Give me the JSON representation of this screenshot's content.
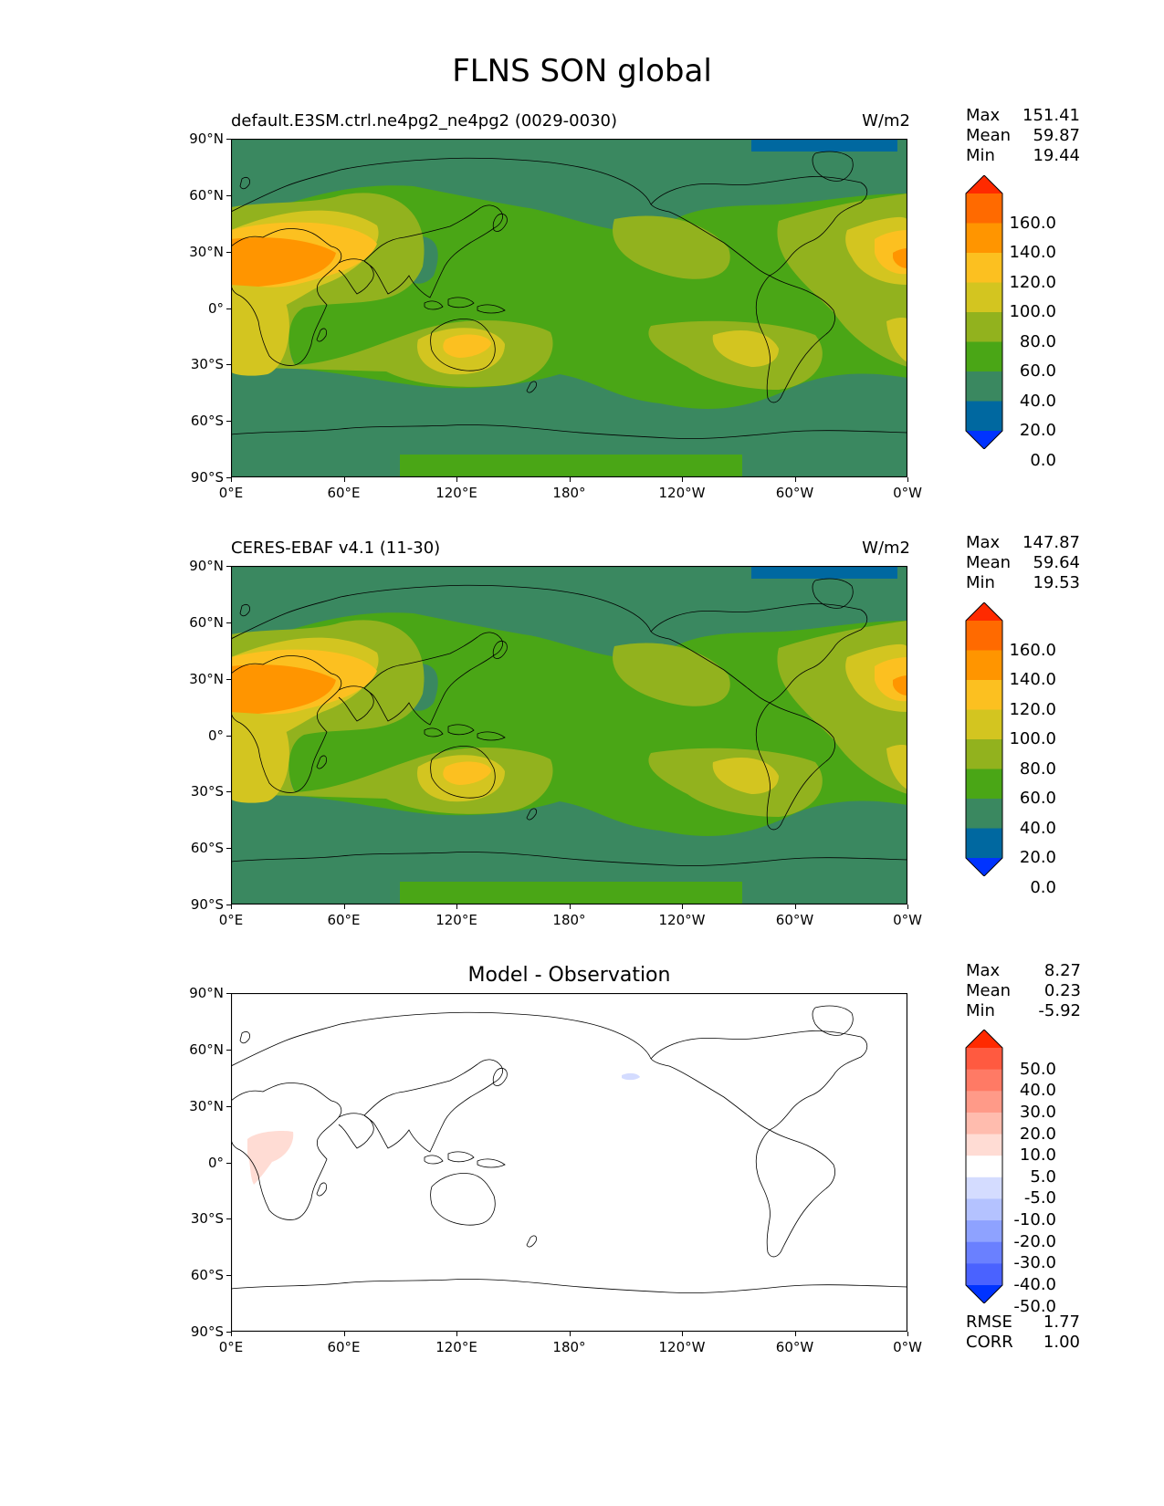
{
  "figure_title": "FLNS SON global",
  "map_x_ticks": [
    "0°E",
    "60°E",
    "120°E",
    "180°",
    "120°W",
    "60°W",
    "0°W"
  ],
  "map_y_ticks": [
    "90°N",
    "60°N",
    "30°N",
    "0°",
    "30°S",
    "60°S",
    "90°S"
  ],
  "panels": [
    {
      "title": "default.E3SM.ctrl.ne4pg2_ne4pg2 (0029-0030)",
      "units": "W/m2",
      "stats": {
        "max_label": "Max",
        "max": "151.41",
        "mean_label": "Mean",
        "mean": "59.87",
        "min_label": "Min",
        "min": "19.44"
      },
      "colorbar": {
        "labels": [
          "160.0",
          "140.0",
          "120.0",
          "100.0",
          "80.0",
          "60.0",
          "40.0",
          "20.0",
          "0.0"
        ],
        "colors": [
          "#ff2a00",
          "#ff6a00",
          "#ff9500",
          "#fcc020",
          "#d3c520",
          "#92b21e",
          "#4aa616",
          "#3a8860",
          "#0068a0",
          "#0033ff"
        ]
      }
    },
    {
      "title": "CERES-EBAF v4.1 (11-30)",
      "units": "W/m2",
      "stats": {
        "max_label": "Max",
        "max": "147.87",
        "mean_label": "Mean",
        "mean": "59.64",
        "min_label": "Min",
        "min": "19.53"
      },
      "colorbar": {
        "labels": [
          "160.0",
          "140.0",
          "120.0",
          "100.0",
          "80.0",
          "60.0",
          "40.0",
          "20.0",
          "0.0"
        ],
        "colors": [
          "#ff2a00",
          "#ff6a00",
          "#ff9500",
          "#fcc020",
          "#d3c520",
          "#92b21e",
          "#4aa616",
          "#3a8860",
          "#0068a0",
          "#0033ff"
        ]
      }
    },
    {
      "title": "Model - Observation",
      "stats": {
        "max_label": "Max",
        "max": "8.27",
        "mean_label": "Mean",
        "mean": "0.23",
        "min_label": "Min",
        "min": "-5.92"
      },
      "colorbar": {
        "labels": [
          "50.0",
          "40.0",
          "30.0",
          "20.0",
          "10.0",
          "5.0",
          "-5.0",
          "-10.0",
          "-20.0",
          "-30.0",
          "-40.0",
          "-50.0"
        ],
        "colors": [
          "#ff2a00",
          "#ff5a40",
          "#ff7a65",
          "#ff9a88",
          "#ffbcae",
          "#ffdcd4",
          "#ffffff",
          "#d4dcff",
          "#b4c2ff",
          "#8ea2ff",
          "#6a80ff",
          "#4a62ff",
          "#0033ff"
        ]
      },
      "rmse_label": "RMSE",
      "rmse": "1.77",
      "corr_label": "CORR",
      "corr": "1.00"
    }
  ]
}
